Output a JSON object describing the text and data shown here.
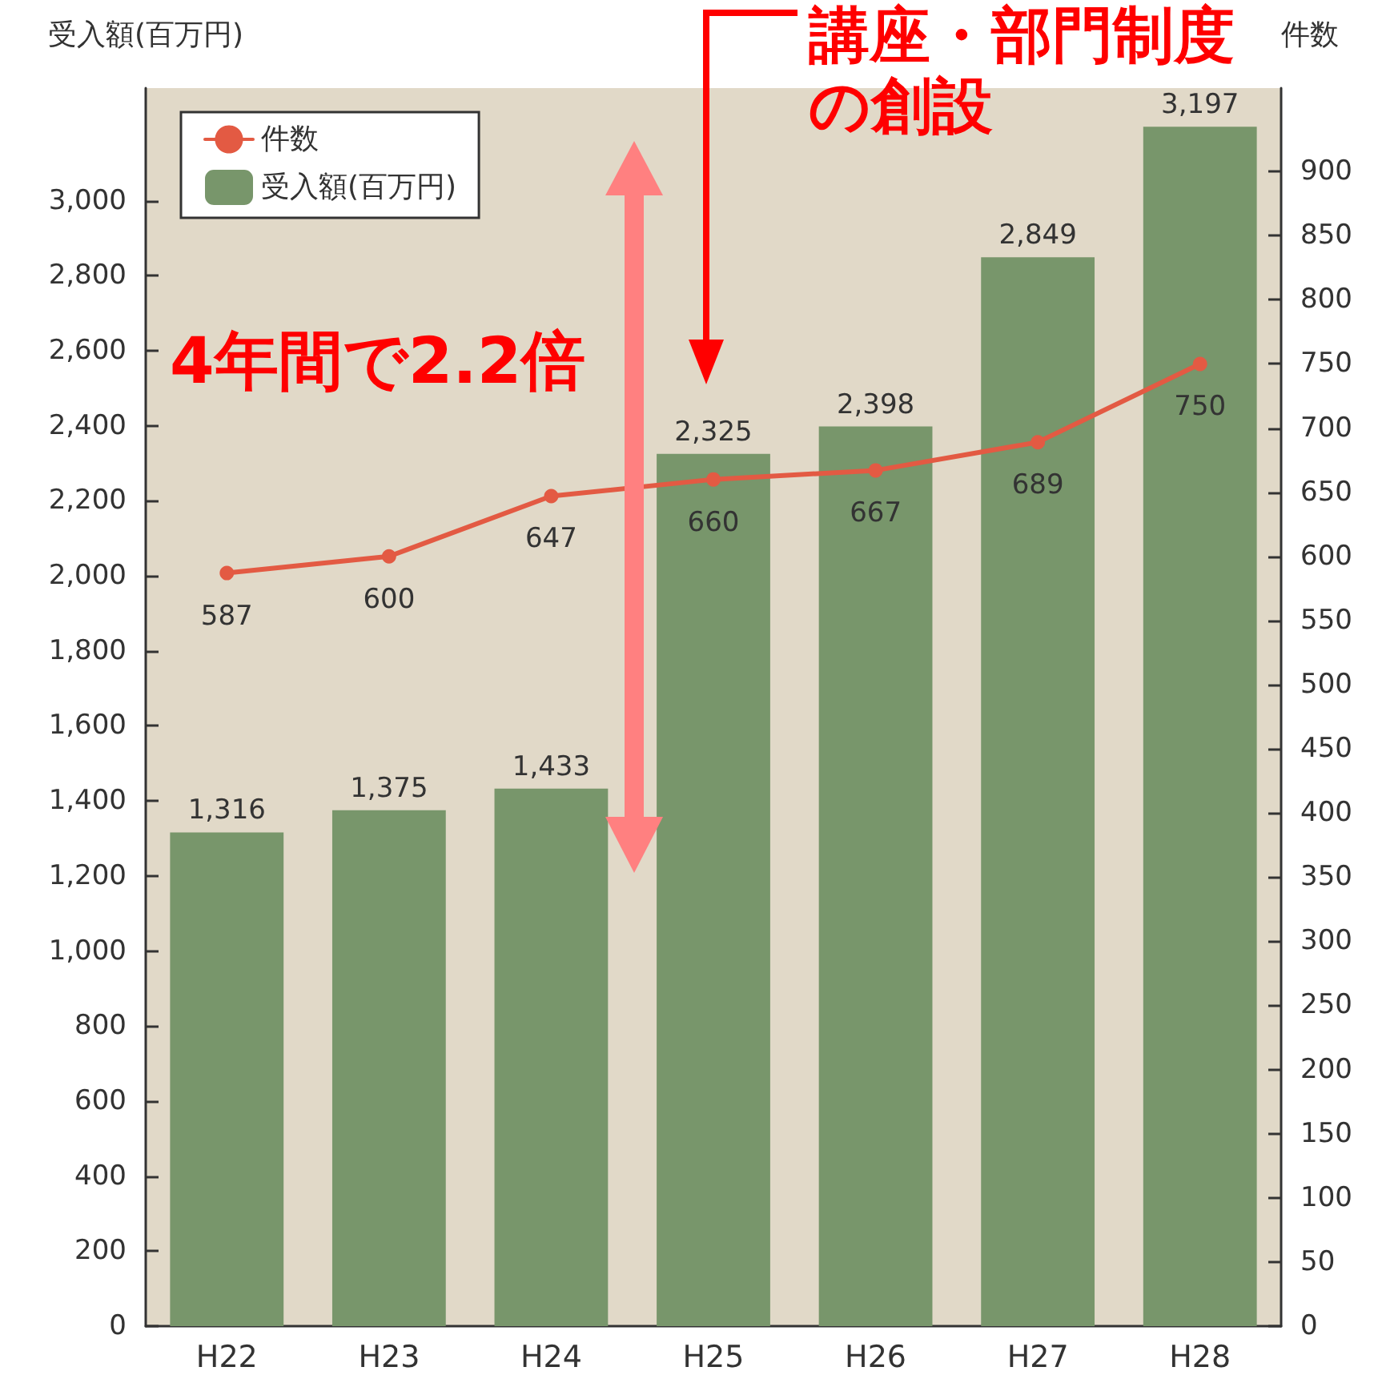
{
  "chart_data": {
    "type": "bar",
    "categories": [
      "H22",
      "H23",
      "H24",
      "H25",
      "H26",
      "H27",
      "H28"
    ],
    "ylabel": "受入額(百万円)",
    "y2label": "件数",
    "series": [
      {
        "name": "件数",
        "type": "line",
        "axis": "y2",
        "color": "#e35a43",
        "values": [
          587,
          600,
          647,
          660,
          667,
          689,
          750
        ]
      },
      {
        "name": "受入額(百万円)",
        "color": "#78966b",
        "values": [
          1316,
          1375,
          1433,
          2325,
          2398,
          2849,
          3197
        ],
        "value_labels": [
          "1,316",
          "1,375",
          "1,433",
          "2,325",
          "2,398",
          "2,849",
          "3,197"
        ]
      }
    ],
    "ylim": [
      0,
      3300
    ],
    "yticks": [
      0,
      200,
      400,
      600,
      800,
      {
        "value": 1000,
        "label": "1,000"
      },
      {
        "value": 1200,
        "label": "1,200"
      },
      {
        "value": 1400,
        "label": "1,400"
      },
      {
        "value": 1600,
        "label": "1,600"
      },
      {
        "value": 1800,
        "label": "1,800"
      },
      {
        "value": 2000,
        "label": "2,000"
      },
      {
        "value": 2200,
        "label": "2,200"
      },
      {
        "value": 2400,
        "label": "2,400"
      },
      {
        "value": 2600,
        "label": "2,600"
      },
      {
        "value": 2800,
        "label": "2,800"
      },
      {
        "value": 3000,
        "label": "3,000"
      }
    ],
    "y2lim": [
      0,
      965
    ],
    "y2ticks": [
      0,
      50,
      100,
      150,
      200,
      250,
      300,
      350,
      400,
      450,
      500,
      550,
      600,
      650,
      700,
      750,
      800,
      850,
      900
    ],
    "data_labels": true,
    "marker": "circle",
    "legend": "top left",
    "grid": false,
    "annotations": [
      "講座・部門制度の創設",
      "4年間で2.2倍"
    ]
  }
}
